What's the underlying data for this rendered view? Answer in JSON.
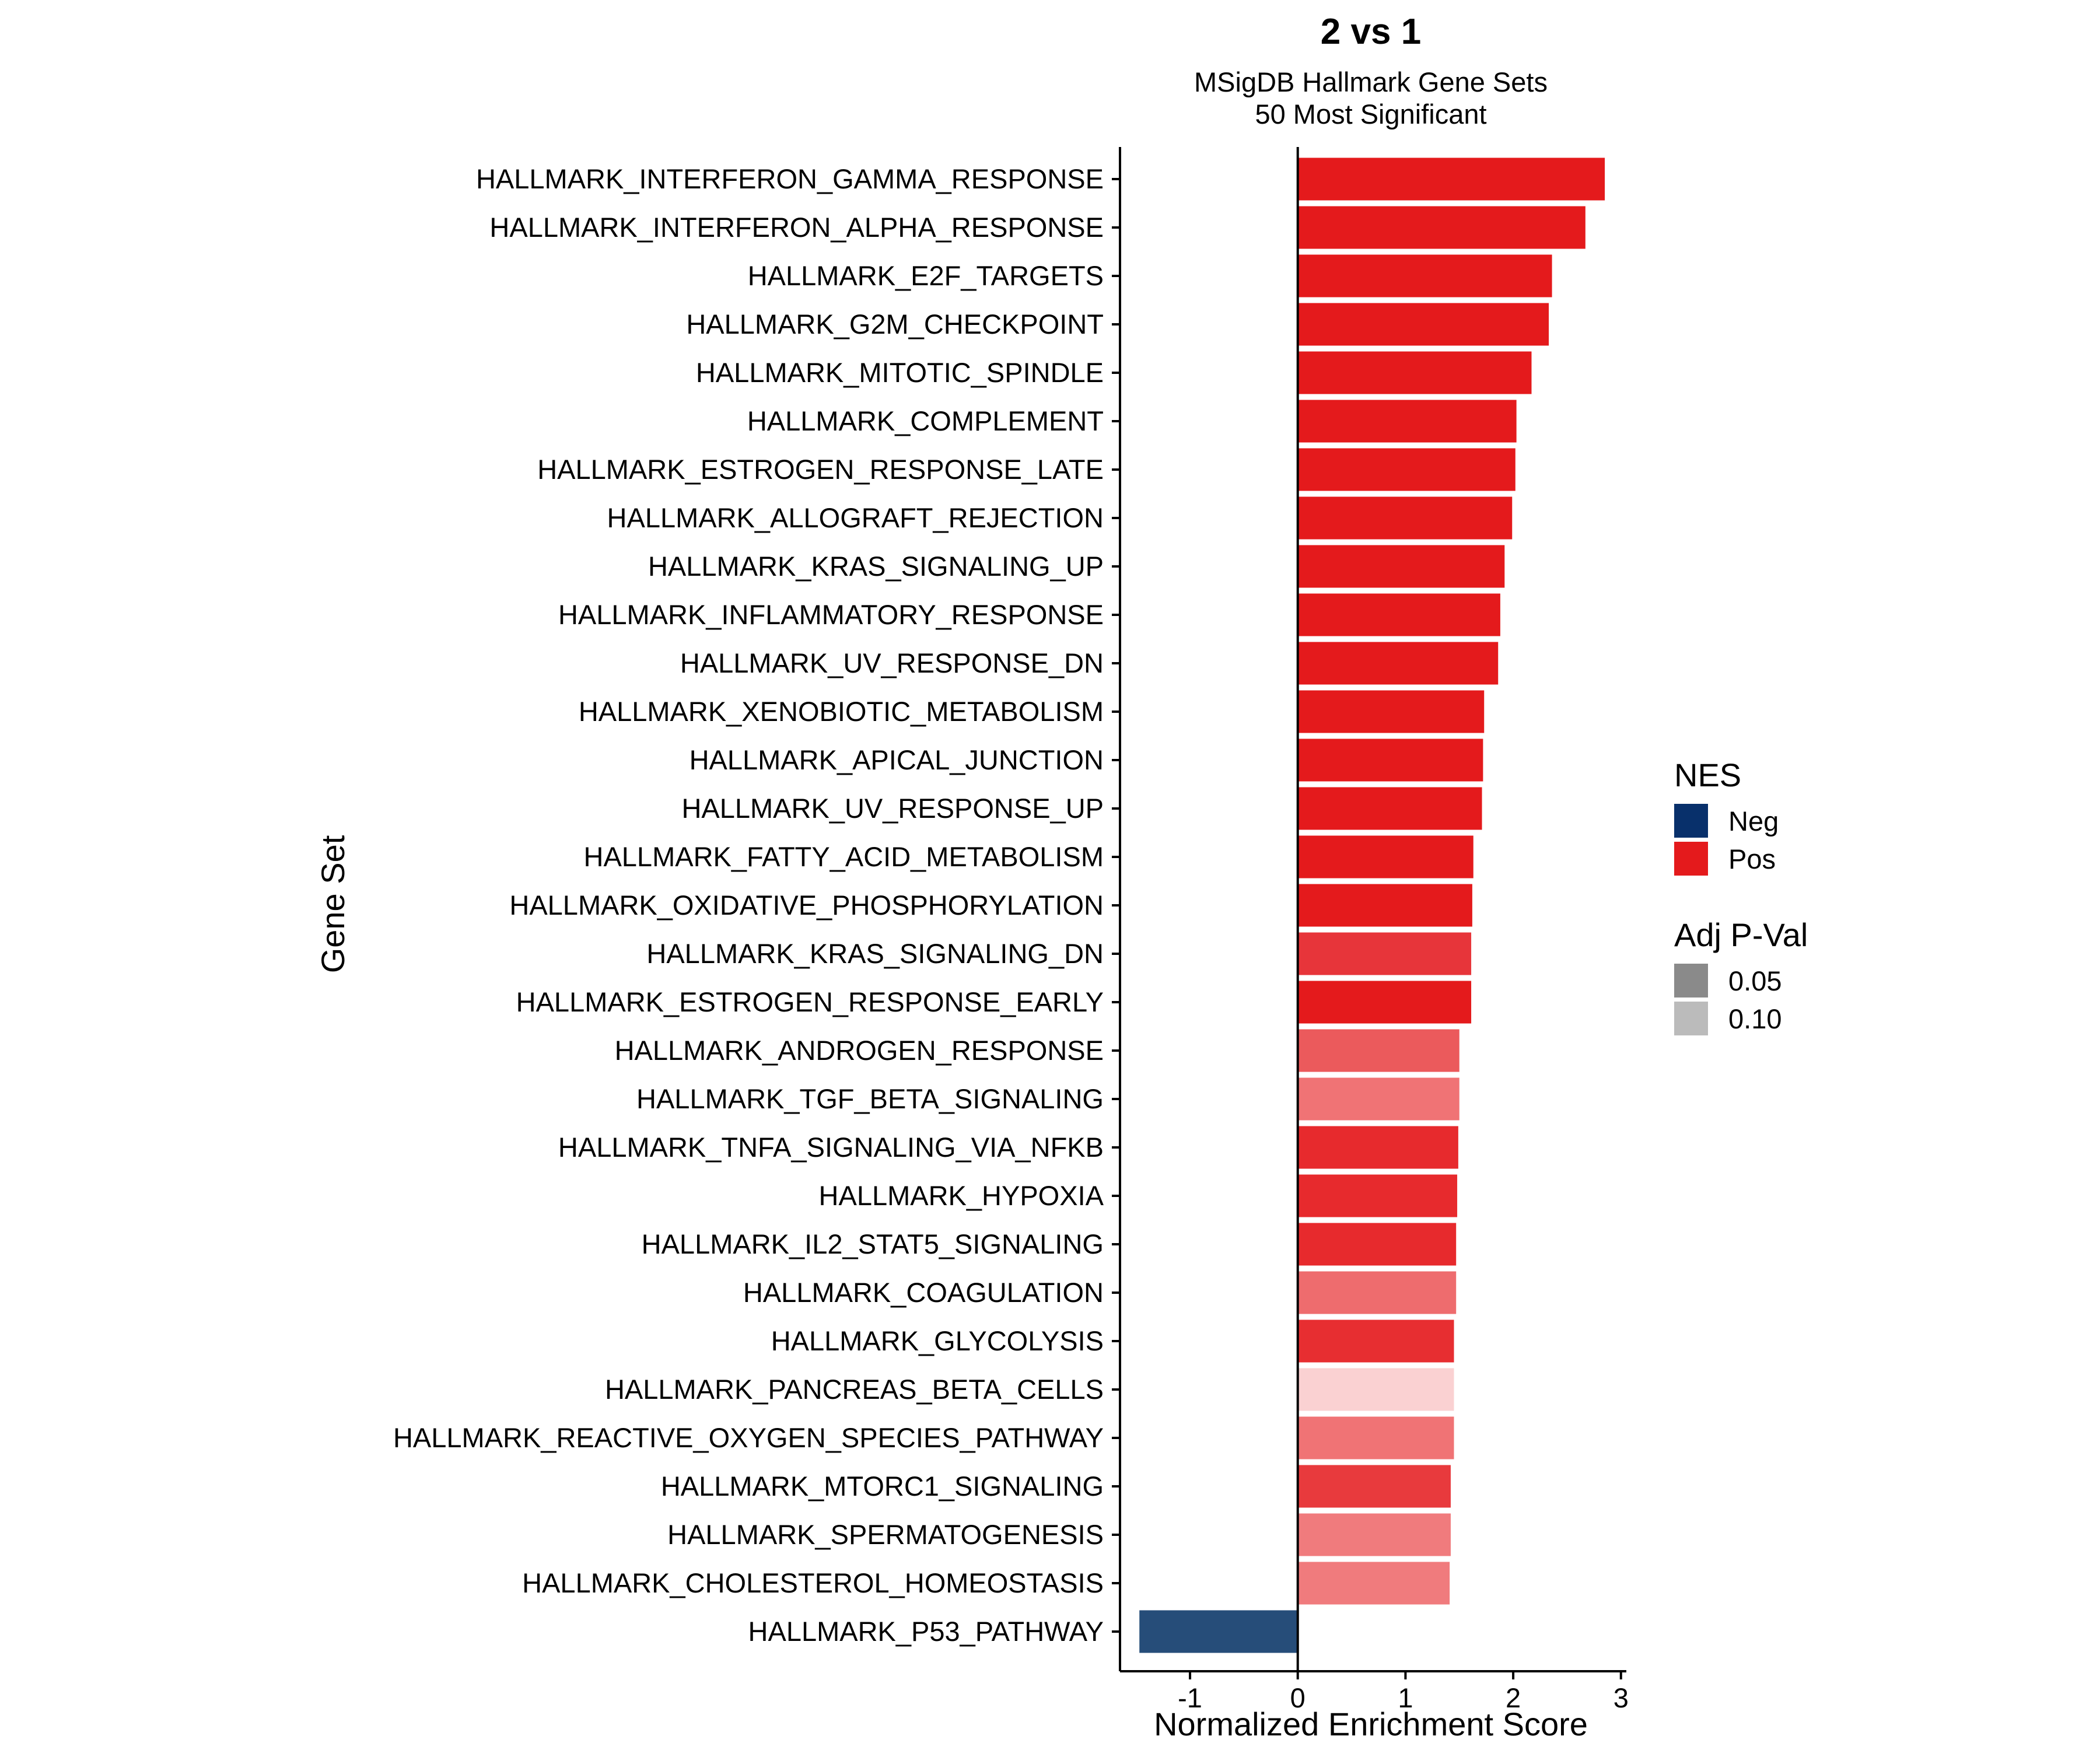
{
  "chart_data": {
    "type": "bar",
    "orientation": "horizontal",
    "title": "2 vs 1",
    "subtitle_lines": [
      "MSigDB Hallmark Gene Sets",
      "50 Most Significant"
    ],
    "xlabel": "Normalized Enrichment Score",
    "ylabel": "Gene Set",
    "xlim": [
      -1.65,
      3.05
    ],
    "xticks": [
      -1,
      0,
      1,
      2,
      3
    ],
    "xtick_labels": [
      "-1",
      "0",
      "1",
      "2",
      "3"
    ],
    "categories": [
      "HALLMARK_INTERFERON_GAMMA_RESPONSE",
      "HALLMARK_INTERFERON_ALPHA_RESPONSE",
      "HALLMARK_E2F_TARGETS",
      "HALLMARK_G2M_CHECKPOINT",
      "HALLMARK_MITOTIC_SPINDLE",
      "HALLMARK_COMPLEMENT",
      "HALLMARK_ESTROGEN_RESPONSE_LATE",
      "HALLMARK_ALLOGRAFT_REJECTION",
      "HALLMARK_KRAS_SIGNALING_UP",
      "HALLMARK_INFLAMMATORY_RESPONSE",
      "HALLMARK_UV_RESPONSE_DN",
      "HALLMARK_XENOBIOTIC_METABOLISM",
      "HALLMARK_APICAL_JUNCTION",
      "HALLMARK_UV_RESPONSE_UP",
      "HALLMARK_FATTY_ACID_METABOLISM",
      "HALLMARK_OXIDATIVE_PHOSPHORYLATION",
      "HALLMARK_KRAS_SIGNALING_DN",
      "HALLMARK_ESTROGEN_RESPONSE_EARLY",
      "HALLMARK_ANDROGEN_RESPONSE",
      "HALLMARK_TGF_BETA_SIGNALING",
      "HALLMARK_TNFA_SIGNALING_VIA_NFKB",
      "HALLMARK_HYPOXIA",
      "HALLMARK_IL2_STAT5_SIGNALING",
      "HALLMARK_COAGULATION",
      "HALLMARK_GLYCOLYSIS",
      "HALLMARK_PANCREAS_BETA_CELLS",
      "HALLMARK_REACTIVE_OXYGEN_SPECIES_PATHWAY",
      "HALLMARK_MTORC1_SIGNALING",
      "HALLMARK_SPERMATOGENESIS",
      "HALLMARK_CHOLESTEROL_HOMEOSTASIS",
      "HALLMARK_P53_PATHWAY"
    ],
    "values": [
      2.85,
      2.67,
      2.36,
      2.33,
      2.17,
      2.03,
      2.02,
      1.99,
      1.92,
      1.88,
      1.86,
      1.73,
      1.72,
      1.71,
      1.63,
      1.62,
      1.61,
      1.61,
      1.5,
      1.5,
      1.49,
      1.48,
      1.47,
      1.47,
      1.45,
      1.45,
      1.45,
      1.42,
      1.42,
      1.41,
      -1.47
    ],
    "bar_colors": [
      "#e41a1c",
      "#e41a1c",
      "#e41a1c",
      "#e41a1c",
      "#e41a1c",
      "#e41a1c",
      "#e41a1c",
      "#e41a1c",
      "#e41a1c",
      "#e41a1c",
      "#e41a1c",
      "#e41a1c",
      "#e41a1c",
      "#e41a1c",
      "#e41a1c",
      "#e41a1c",
      "#e7353a",
      "#e41a1c",
      "#eb5a5c",
      "#f07375",
      "#e72a2d",
      "#e72a2d",
      "#e72a2d",
      "#ee6c6e",
      "#e72e31",
      "#fad1d2",
      "#f07375",
      "#e83a3d",
      "#f07b7d",
      "#f07b7d",
      "#264d79"
    ],
    "legend": {
      "position": "right",
      "groups": [
        {
          "title": "NES",
          "items": [
            {
              "label": "Neg",
              "color": "#08306b"
            },
            {
              "label": "Pos",
              "color": "#e41a1c"
            }
          ]
        },
        {
          "title": "Adj P-Val",
          "items": [
            {
              "label": "0.05",
              "color": "#8a8a8a"
            },
            {
              "label": "0.10",
              "color": "#bbbbbb"
            }
          ]
        }
      ]
    },
    "grid": false
  }
}
